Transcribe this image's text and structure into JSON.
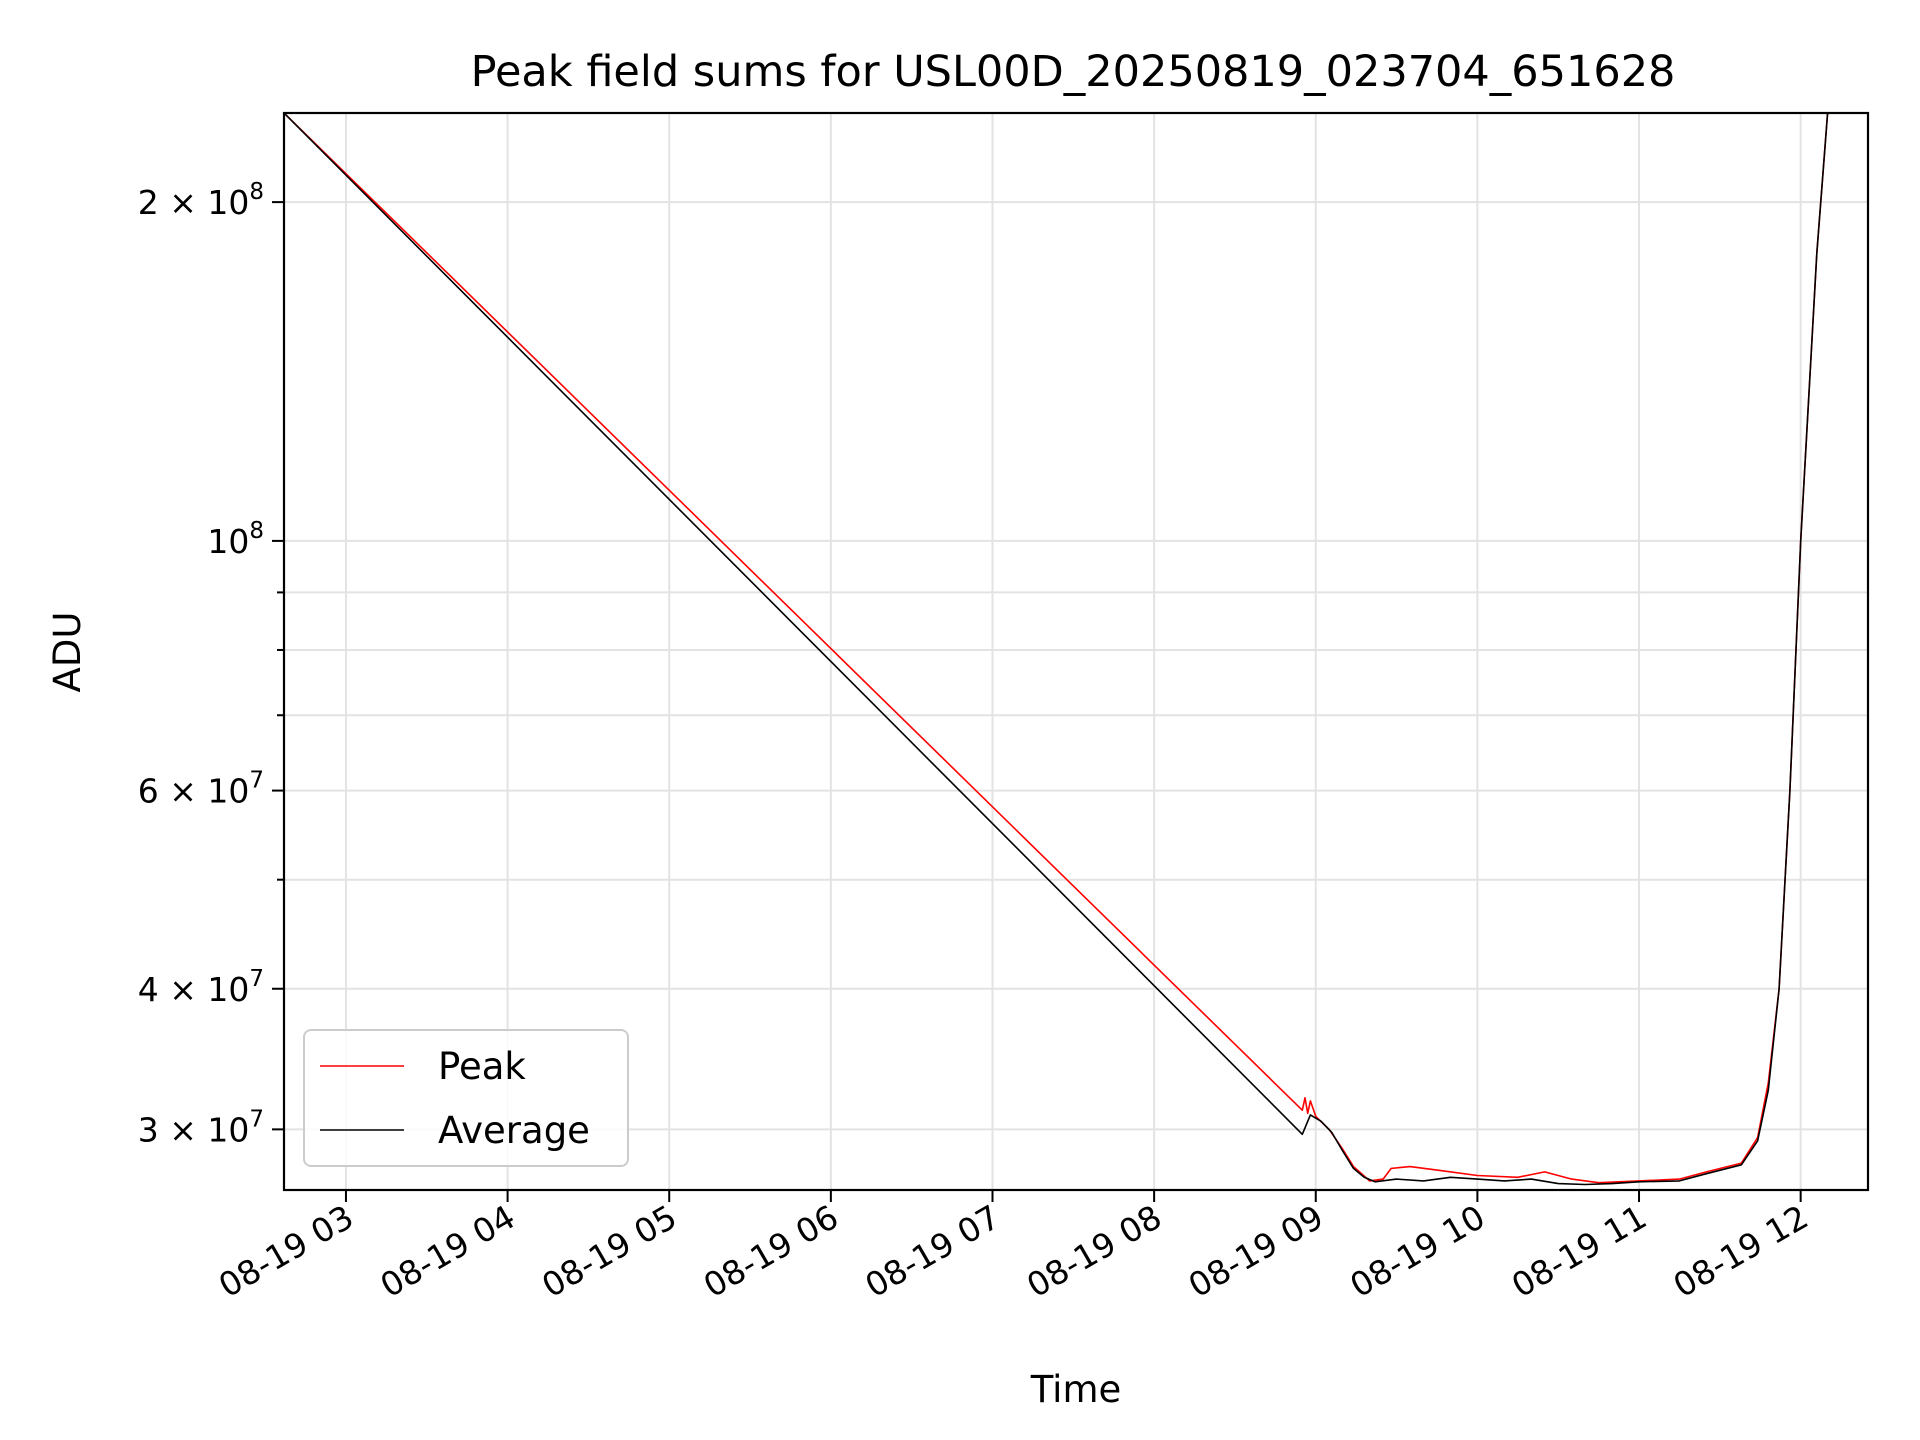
{
  "chart_data": {
    "type": "line",
    "title": "Peak field sums for USL00D_20250819_023704_651628",
    "xlabel": "Time",
    "ylabel": "ADU",
    "yscale": "log",
    "grid": true,
    "legend_position": "lower-left",
    "xlim": [
      "2025-08-19 02:37",
      "2025-08-19 12:25"
    ],
    "ylim": [
      26500000,
      240000000
    ],
    "x_ticks": [
      {
        "time": "2025-08-19 03:00",
        "label": "08-19 03"
      },
      {
        "time": "2025-08-19 04:00",
        "label": "08-19 04"
      },
      {
        "time": "2025-08-19 05:00",
        "label": "08-19 05"
      },
      {
        "time": "2025-08-19 06:00",
        "label": "08-19 06"
      },
      {
        "time": "2025-08-19 07:00",
        "label": "08-19 07"
      },
      {
        "time": "2025-08-19 08:00",
        "label": "08-19 08"
      },
      {
        "time": "2025-08-19 09:00",
        "label": "08-19 09"
      },
      {
        "time": "2025-08-19 10:00",
        "label": "08-19 10"
      },
      {
        "time": "2025-08-19 11:00",
        "label": "08-19 11"
      },
      {
        "time": "2025-08-19 12:00",
        "label": "08-19 12"
      }
    ],
    "y_major_ticks": [
      {
        "value": 30000000,
        "mantissa": "3",
        "exponent": "7"
      },
      {
        "value": 40000000,
        "mantissa": "4",
        "exponent": "7"
      },
      {
        "value": 60000000,
        "mantissa": "6",
        "exponent": "7"
      },
      {
        "value": 100000000,
        "mantissa": "",
        "exponent": "8"
      },
      {
        "value": 200000000,
        "mantissa": "2",
        "exponent": "8"
      }
    ],
    "y_minor_ticks": [
      50000000,
      70000000,
      80000000,
      90000000
    ],
    "series": [
      {
        "name": "Peak",
        "color": "#ff0000",
        "points": [
          [
            "2025-08-19 02:37",
            240000000
          ],
          [
            "2025-08-19 08:55",
            31200000
          ],
          [
            "2025-08-19 08:56",
            32000000
          ],
          [
            "2025-08-19 08:57",
            31000000
          ],
          [
            "2025-08-19 08:58",
            31800000
          ],
          [
            "2025-08-19 09:00",
            30800000
          ],
          [
            "2025-08-19 09:05",
            30000000
          ],
          [
            "2025-08-19 09:10",
            28800000
          ],
          [
            "2025-08-19 09:14",
            27800000
          ],
          [
            "2025-08-19 09:17",
            27400000
          ],
          [
            "2025-08-19 09:20",
            27000000
          ],
          [
            "2025-08-19 09:25",
            27100000
          ],
          [
            "2025-08-19 09:28",
            27700000
          ],
          [
            "2025-08-19 09:35",
            27800000
          ],
          [
            "2025-08-19 09:45",
            27600000
          ],
          [
            "2025-08-19 10:00",
            27300000
          ],
          [
            "2025-08-19 10:15",
            27200000
          ],
          [
            "2025-08-19 10:25",
            27500000
          ],
          [
            "2025-08-19 10:35",
            27100000
          ],
          [
            "2025-08-19 10:45",
            26900000
          ],
          [
            "2025-08-19 11:00",
            27000000
          ],
          [
            "2025-08-19 11:15",
            27100000
          ],
          [
            "2025-08-19 11:25",
            27500000
          ],
          [
            "2025-08-19 11:38",
            28000000
          ],
          [
            "2025-08-19 11:44",
            29500000
          ],
          [
            "2025-08-19 11:48",
            33000000
          ],
          [
            "2025-08-19 11:52",
            40000000
          ],
          [
            "2025-08-19 11:56",
            60000000
          ],
          [
            "2025-08-19 12:00",
            100000000
          ],
          [
            "2025-08-19 12:06",
            180000000
          ],
          [
            "2025-08-19 12:10",
            240000000
          ]
        ]
      },
      {
        "name": "Average",
        "color": "#000000",
        "points": [
          [
            "2025-08-19 02:37",
            240000000
          ],
          [
            "2025-08-19 08:55",
            29700000
          ],
          [
            "2025-08-19 08:58",
            30900000
          ],
          [
            "2025-08-19 09:02",
            30500000
          ],
          [
            "2025-08-19 09:06",
            29800000
          ],
          [
            "2025-08-19 09:10",
            28700000
          ],
          [
            "2025-08-19 09:14",
            27700000
          ],
          [
            "2025-08-19 09:18",
            27200000
          ],
          [
            "2025-08-19 09:22",
            26950000
          ],
          [
            "2025-08-19 09:30",
            27100000
          ],
          [
            "2025-08-19 09:40",
            27000000
          ],
          [
            "2025-08-19 09:50",
            27200000
          ],
          [
            "2025-08-19 10:00",
            27100000
          ],
          [
            "2025-08-19 10:10",
            27000000
          ],
          [
            "2025-08-19 10:20",
            27100000
          ],
          [
            "2025-08-19 10:30",
            26850000
          ],
          [
            "2025-08-19 10:40",
            26800000
          ],
          [
            "2025-08-19 10:50",
            26850000
          ],
          [
            "2025-08-19 11:00",
            26950000
          ],
          [
            "2025-08-19 11:15",
            27000000
          ],
          [
            "2025-08-19 11:25",
            27400000
          ],
          [
            "2025-08-19 11:38",
            27900000
          ],
          [
            "2025-08-19 11:44",
            29300000
          ],
          [
            "2025-08-19 11:48",
            32500000
          ],
          [
            "2025-08-19 11:52",
            40000000
          ],
          [
            "2025-08-19 11:56",
            60000000
          ],
          [
            "2025-08-19 12:00",
            100000000
          ],
          [
            "2025-08-19 12:06",
            180000000
          ],
          [
            "2025-08-19 12:10",
            240000000
          ]
        ]
      }
    ]
  }
}
